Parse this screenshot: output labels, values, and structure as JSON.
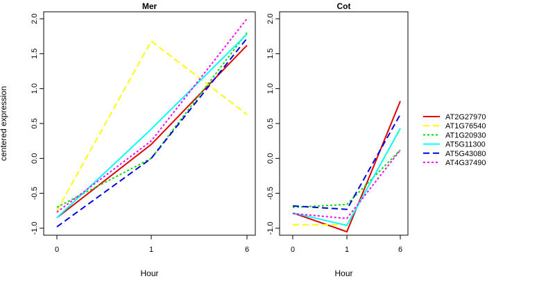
{
  "chart_data": {
    "type": "line",
    "ylabel": "centered expression",
    "legend_position": "right",
    "series_styles": [
      {
        "name": "AT2G27970",
        "color": "#e00000",
        "dash": "solid"
      },
      {
        "name": "AT1G76540",
        "color": "#ffff00",
        "dash": "dashed"
      },
      {
        "name": "AT1G20930",
        "color": "#00dd00",
        "dash": "dotted"
      },
      {
        "name": "AT5G11300",
        "color": "#00ffff",
        "dash": "solid"
      },
      {
        "name": "AT5G43080",
        "color": "#0000dd",
        "dash": "dashed"
      },
      {
        "name": "AT4G37490",
        "color": "#ff00ff",
        "dash": "dotted"
      }
    ],
    "panels": [
      {
        "title": "Mer",
        "xlabel": "Hour",
        "categories": [
          "0",
          "1",
          "6"
        ],
        "ylim": [
          -1.1,
          2.1
        ],
        "yticks": [
          "-1.0",
          "-0.5",
          "0.0",
          "0.5",
          "1.0",
          "1.5",
          "2.0"
        ],
        "series": [
          {
            "name": "AT2G27970",
            "values": [
              -0.85,
              0.2,
              1.62
            ]
          },
          {
            "name": "AT1G76540",
            "values": [
              -0.75,
              1.68,
              0.63
            ]
          },
          {
            "name": "AT1G20930",
            "values": [
              -0.7,
              0.0,
              1.8
            ]
          },
          {
            "name": "AT5G11300",
            "values": [
              -0.85,
              0.42,
              1.78
            ]
          },
          {
            "name": "AT5G43080",
            "values": [
              -0.98,
              0.0,
              1.72
            ]
          },
          {
            "name": "AT4G37490",
            "values": [
              -0.77,
              0.25,
              2.0
            ]
          }
        ]
      },
      {
        "title": "Cot",
        "xlabel": "Hour",
        "categories": [
          "0",
          "1",
          "6"
        ],
        "ylim": [
          -1.1,
          2.1
        ],
        "yticks": [
          "-1.0",
          "-0.5",
          "0.0",
          "0.5",
          "1.0",
          "1.5",
          "2.0"
        ],
        "series": [
          {
            "name": "AT2G27970",
            "values": [
              -0.78,
              -1.05,
              0.82
            ]
          },
          {
            "name": "AT1G76540",
            "values": [
              -0.95,
              -0.95,
              0.42
            ]
          },
          {
            "name": "AT1G20930",
            "values": [
              -0.7,
              -0.66,
              0.12
            ]
          },
          {
            "name": "AT5G11300",
            "values": [
              -0.78,
              -0.96,
              0.43
            ]
          },
          {
            "name": "AT5G43080",
            "values": [
              -0.68,
              -0.73,
              0.63
            ]
          },
          {
            "name": "AT4G37490",
            "values": [
              -0.79,
              -0.86,
              0.12
            ]
          }
        ]
      }
    ]
  }
}
